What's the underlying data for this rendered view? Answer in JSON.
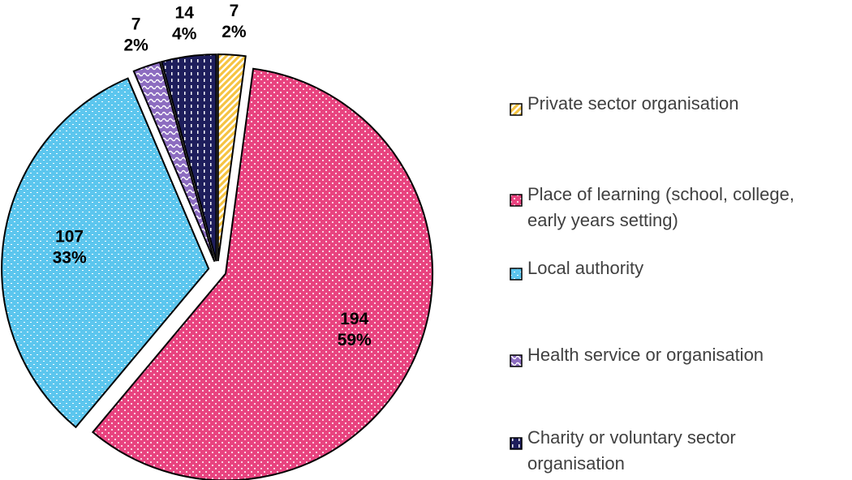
{
  "chart_data": {
    "type": "pie",
    "categories": [
      "Private sector organisation",
      "Place of learning (school, college, early years setting)",
      "Local authority",
      "Health service or organisation",
      "Charity or voluntary sector organisation"
    ],
    "values": [
      7,
      194,
      107,
      7,
      14
    ],
    "percent_labels": [
      "2%",
      "59%",
      "33%",
      "2%",
      "4%"
    ],
    "colors": [
      "#f5c342",
      "#e8437f",
      "#5cc6ee",
      "#8c6cc0",
      "#1e1e5c"
    ],
    "legend": "right"
  }
}
